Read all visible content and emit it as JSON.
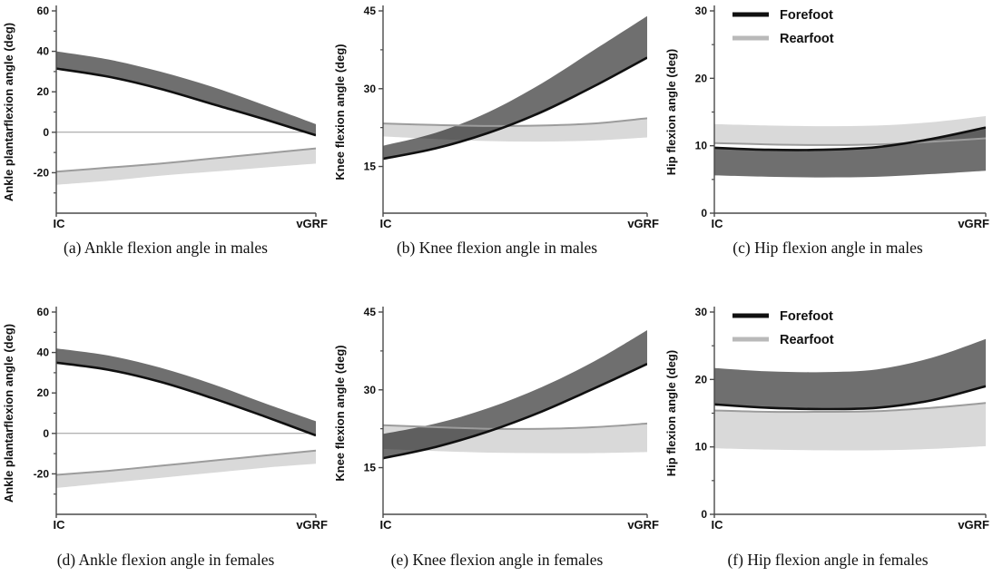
{
  "page": {
    "background": "#ffffff"
  },
  "colors": {
    "forefoot_band": "#6f6f6f",
    "rearfoot_band": "#d9d9d9",
    "forefoot_line": "#101010",
    "rearfoot_line": "#9c9c9c",
    "legend_forefoot": "#101010",
    "legend_rearfoot": "#b9b9b9",
    "axis": "#4a4a4a",
    "zero_line": "#999999",
    "text": "#101010"
  },
  "legend": {
    "items": [
      {
        "label": "Forefoot",
        "key": "forefoot"
      },
      {
        "label": "Rearfoot",
        "key": "rearfoot"
      }
    ]
  },
  "chart_data": [
    {
      "id": "a",
      "type": "area",
      "caption": "(a) Ankle flexion angle in males",
      "ylabel": "Ankle plantarflexion angle (deg)",
      "xticklabels": [
        "IC",
        "vGRF"
      ],
      "ylim": [
        -40,
        60
      ],
      "yticks": [
        60,
        40,
        20,
        0,
        -20
      ],
      "yticks_minor": [
        50,
        30,
        10,
        -10,
        -30
      ],
      "show_legend": false,
      "x": [
        0,
        0.2,
        0.4,
        0.6,
        0.8,
        1
      ],
      "series": [
        {
          "name": "Forefoot",
          "line_width": 2.6,
          "band_top": [
            40,
            36,
            30,
            22.5,
            13.5,
            4
          ],
          "band_bottom": [
            31.5,
            27.5,
            21.5,
            14,
            6.5,
            -1.5
          ],
          "line": [
            31.5,
            27.5,
            21.5,
            14,
            6.5,
            -1.5
          ]
        },
        {
          "name": "Rearfoot",
          "line_width": 2.0,
          "band_top": [
            -19.5,
            -17.5,
            -15.5,
            -13,
            -10.5,
            -8
          ],
          "band_bottom": [
            -26,
            -24,
            -21.5,
            -19.5,
            -17.5,
            -15.5
          ],
          "line": [
            -19.5,
            -17.5,
            -15.5,
            -13,
            -10.5,
            -8
          ]
        }
      ]
    },
    {
      "id": "b",
      "type": "area",
      "caption": "(b) Knee flexion angle in males",
      "ylabel": "Knee flexion angle (deg)",
      "xticklabels": [
        "IC",
        "vGRF"
      ],
      "ylim": [
        6,
        45
      ],
      "yticks": [
        45,
        30,
        15
      ],
      "yticks_minor": [
        37.5,
        22.5
      ],
      "show_legend": false,
      "x": [
        0,
        0.2,
        0.4,
        0.6,
        0.8,
        1
      ],
      "series": [
        {
          "name": "Forefoot",
          "line_width": 2.6,
          "band_top": [
            19,
            21.5,
            25.5,
            31,
            37.5,
            44
          ],
          "band_bottom": [
            16.5,
            18.5,
            21.5,
            25.5,
            30.5,
            36
          ],
          "line": [
            16.5,
            18.5,
            21.5,
            25.5,
            30.5,
            36
          ]
        },
        {
          "name": "Rearfoot",
          "line_width": 2.0,
          "band_top": [
            23.3,
            23.0,
            22.8,
            22.9,
            23.3,
            24.3
          ],
          "band_bottom": [
            20.8,
            20.3,
            19.9,
            19.8,
            20.0,
            20.6
          ],
          "line": [
            23.3,
            23.0,
            22.8,
            22.9,
            23.3,
            24.3
          ]
        }
      ]
    },
    {
      "id": "c",
      "type": "area",
      "caption": "(c) Hip flexion angle in males",
      "ylabel": "Hip flexion angle (deg)",
      "xticklabels": [
        "IC",
        "vGRF"
      ],
      "ylim": [
        0,
        30
      ],
      "yticks": [
        30,
        20,
        10,
        0
      ],
      "yticks_minor": [
        25,
        15,
        5
      ],
      "show_legend": true,
      "x": [
        0,
        0.2,
        0.4,
        0.6,
        0.8,
        1
      ],
      "series": [
        {
          "name": "Forefoot",
          "line_width": 2.6,
          "band_top": [
            9.7,
            9.4,
            9.4,
            9.8,
            11,
            12.7
          ],
          "band_bottom": [
            5.6,
            5.4,
            5.3,
            5.4,
            5.8,
            6.3
          ],
          "line": [
            9.7,
            9.4,
            9.4,
            9.8,
            11,
            12.7
          ]
        },
        {
          "name": "Rearfoot",
          "line_width": 2.0,
          "band_top": [
            13.2,
            13.0,
            12.9,
            13.0,
            13.5,
            14.4
          ],
          "band_bottom": [
            10.4,
            10.2,
            10.1,
            10.2,
            10.6,
            11.1
          ],
          "line": [
            10.4,
            10.2,
            10.1,
            10.2,
            10.6,
            11.1
          ]
        }
      ]
    },
    {
      "id": "d",
      "type": "area",
      "caption": "(d) Ankle flexion angle in females",
      "ylabel": "Ankle plantarflexion angle (deg)",
      "xticklabels": [
        "IC",
        "vGRF"
      ],
      "ylim": [
        -40,
        60
      ],
      "yticks": [
        60,
        40,
        20,
        0,
        -20
      ],
      "yticks_minor": [
        50,
        30,
        10,
        -10,
        -30
      ],
      "show_legend": false,
      "x": [
        0,
        0.2,
        0.4,
        0.6,
        0.8,
        1
      ],
      "series": [
        {
          "name": "Forefoot",
          "line_width": 2.6,
          "band_top": [
            42,
            38.5,
            32.5,
            24.5,
            15,
            6
          ],
          "band_bottom": [
            35,
            31.5,
            25.5,
            17.5,
            8.5,
            -1
          ],
          "line": [
            35,
            31.5,
            25.5,
            17.5,
            8.5,
            -1
          ]
        },
        {
          "name": "Rearfoot",
          "line_width": 2.0,
          "band_top": [
            -20.5,
            -18.5,
            -16,
            -13.5,
            -11,
            -8.5
          ],
          "band_bottom": [
            -27,
            -24.5,
            -22,
            -19.5,
            -17,
            -15
          ],
          "line": [
            -20.5,
            -18.5,
            -16,
            -13.5,
            -11,
            -8.5
          ]
        }
      ]
    },
    {
      "id": "e",
      "type": "area",
      "caption": "(e) Knee flexion angle in females",
      "ylabel": "Knee flexion angle (deg)",
      "xticklabels": [
        "IC",
        "vGRF"
      ],
      "ylim": [
        6,
        45
      ],
      "yticks": [
        45,
        30,
        15
      ],
      "yticks_minor": [
        37.5,
        22.5
      ],
      "show_legend": false,
      "x": [
        0,
        0.2,
        0.4,
        0.6,
        0.8,
        1
      ],
      "series": [
        {
          "name": "Forefoot",
          "line_width": 2.6,
          "band_top": [
            21.5,
            23.5,
            26.5,
            30.5,
            35.5,
            41.5
          ],
          "band_bottom": [
            16.8,
            19,
            22,
            25.8,
            30.3,
            35
          ],
          "line": [
            16.8,
            19,
            22,
            25.8,
            30.3,
            35
          ]
        },
        {
          "name": "Rearfoot",
          "line_width": 2.0,
          "band_top": [
            23.2,
            22.8,
            22.5,
            22.5,
            22.8,
            23.5
          ],
          "band_bottom": [
            18.6,
            18.2,
            17.9,
            17.8,
            17.8,
            18
          ],
          "line": [
            23.2,
            22.8,
            22.5,
            22.5,
            22.8,
            23.5
          ]
        }
      ]
    },
    {
      "id": "f",
      "type": "area",
      "caption": "(f) Hip flexion angle in females",
      "ylabel": "Hip flexion angle (deg)",
      "xticklabels": [
        "IC",
        "vGRF"
      ],
      "ylim": [
        0,
        30
      ],
      "yticks": [
        30,
        20,
        10,
        0
      ],
      "yticks_minor": [
        25,
        15,
        5
      ],
      "show_legend": true,
      "x": [
        0,
        0.2,
        0.4,
        0.6,
        0.8,
        1
      ],
      "series": [
        {
          "name": "Forefoot",
          "line_width": 2.6,
          "band_top": [
            21.7,
            21.2,
            21.1,
            21.5,
            23.2,
            26
          ],
          "band_bottom": [
            16.3,
            15.8,
            15.6,
            15.8,
            16.9,
            19
          ],
          "line": [
            16.3,
            15.8,
            15.6,
            15.8,
            16.9,
            19
          ]
        },
        {
          "name": "Rearfoot",
          "line_width": 2.0,
          "band_top": [
            15.4,
            15.2,
            15.2,
            15.3,
            15.8,
            16.5
          ],
          "band_bottom": [
            9.8,
            9.6,
            9.5,
            9.5,
            9.7,
            10.1
          ],
          "line": [
            15.4,
            15.2,
            15.2,
            15.3,
            15.8,
            16.5
          ]
        }
      ]
    }
  ]
}
